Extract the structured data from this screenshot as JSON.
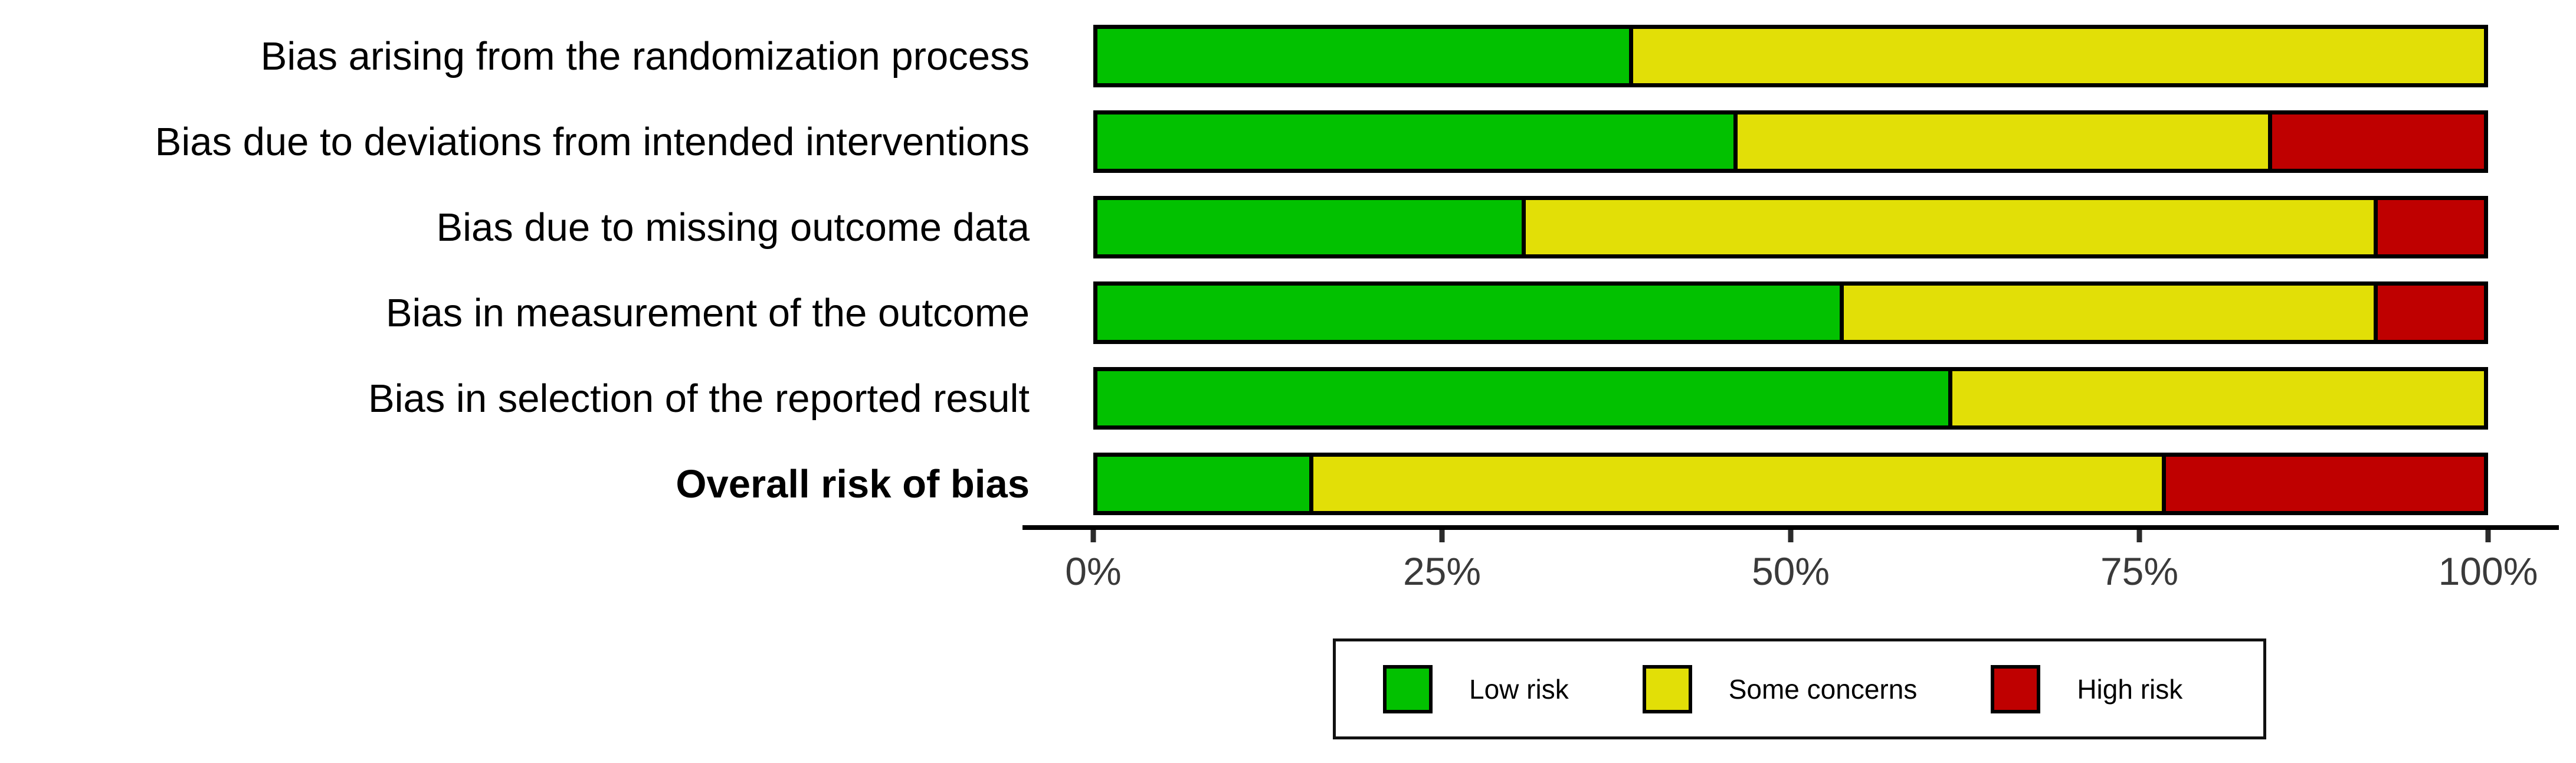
{
  "chart_data": {
    "type": "bar",
    "orientation": "horizontal-stacked",
    "title": "",
    "xlabel": "",
    "ylabel": "",
    "xlim": [
      0,
      100
    ],
    "grid": false,
    "legend_position": "bottom",
    "x_tick_labels": [
      "0%",
      "25%",
      "50%",
      "75%",
      "100%"
    ],
    "x_tick_values": [
      0,
      25,
      50,
      75,
      100
    ],
    "categories": [
      "Bias arising from the randomization process",
      "Bias due to deviations from intended interventions",
      "Bias due to missing outcome data",
      "Bias in measurement of the outcome",
      "Bias in selection of the reported result",
      "Overall risk of bias"
    ],
    "bold_category": "Overall risk of bias",
    "series": [
      {
        "name": "Low risk",
        "color": "#02C100",
        "values": [
          38.46,
          46.15,
          30.77,
          53.85,
          61.54,
          15.38
        ]
      },
      {
        "name": "Some concerns",
        "color": "#E2DF07",
        "values": [
          61.54,
          38.46,
          61.54,
          38.46,
          38.46,
          61.54
        ]
      },
      {
        "name": "High risk",
        "color": "#BF0000",
        "values": [
          0,
          15.38,
          7.69,
          7.69,
          0,
          23.08
        ]
      }
    ]
  },
  "legend": {
    "items": [
      {
        "label": "Low risk",
        "color": "#02C100"
      },
      {
        "label": "Some concerns",
        "color": "#E2DF07"
      },
      {
        "label": "High risk",
        "color": "#BF0000"
      }
    ]
  },
  "style": {
    "bar_border_color": "#000000",
    "axis_line_color": "#000000",
    "tick_label_color": "#3a3a3a",
    "background": "#ffffff"
  }
}
